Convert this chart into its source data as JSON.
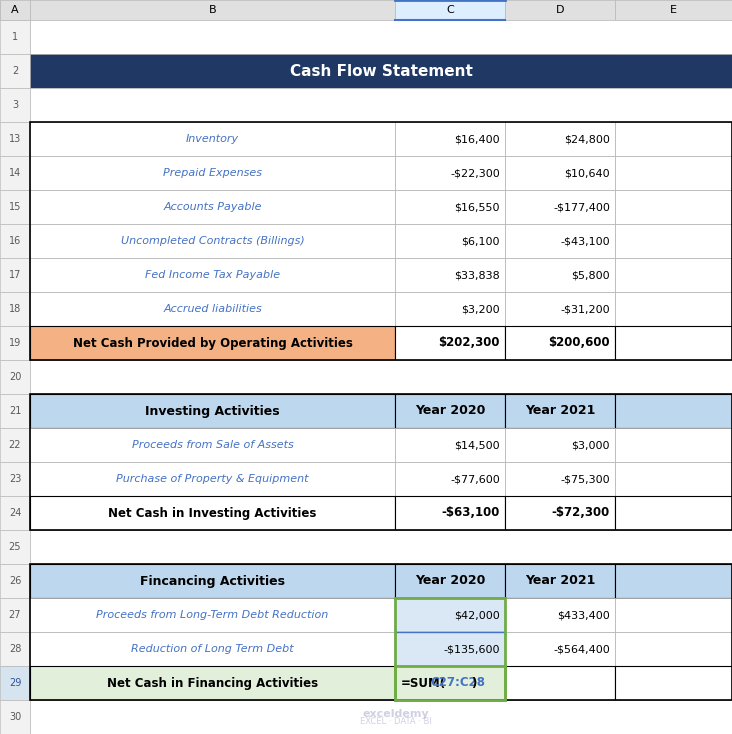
{
  "title": "Cash Flow Statement",
  "title_bg": "#1F3864",
  "title_fg": "#FFFFFF",
  "header_bg": "#BDD7EE",
  "net_bg_orange": "#F4B183",
  "net_bg_green": "#E2EFDA",
  "row_numbers": [
    1,
    2,
    3,
    13,
    14,
    15,
    16,
    17,
    18,
    19,
    20,
    21,
    22,
    23,
    24,
    25,
    26,
    27,
    28,
    29,
    30
  ],
  "sections_operating_rows": [
    {
      "label": "Inventory",
      "c": "$16,400",
      "d": "$24,800"
    },
    {
      "label": "Prepaid Expenses",
      "c": "-$22,300",
      "d": "$10,640"
    },
    {
      "label": "Accounts Payable",
      "c": "$16,550",
      "d": "-$177,400"
    },
    {
      "label": "Uncompleted Contracts (Billings)",
      "c": "$6,100",
      "d": "-$43,100"
    },
    {
      "label": "Fed Income Tax Payable",
      "c": "$33,838",
      "d": "$5,800"
    },
    {
      "label": "Accrued liabilities",
      "c": "$3,200",
      "d": "-$31,200"
    }
  ],
  "op_net_label": "Net Cash Provided by Operating Activities",
  "op_net_c": "$202,300",
  "op_net_d": "$200,600",
  "inv_header_label": "Investing Activities",
  "inv_year2020": "Year 2020",
  "inv_year2021": "Year 2021",
  "sections_investing_rows": [
    {
      "label": "Proceeds from Sale of Assets",
      "c": "$14,500",
      "d": "$3,000"
    },
    {
      "label": "Purchase of Property & Equipment",
      "c": "-$77,600",
      "d": "-$75,300"
    }
  ],
  "inv_net_label": "Net Cash in Investing Activities",
  "inv_net_c": "-$63,100",
  "inv_net_d": "-$72,300",
  "fin_header_label": "Fincancing Activities",
  "fin_year2020": "Year 2020",
  "fin_year2021": "Year 2021",
  "sections_financing_rows": [
    {
      "label": "Proceeds from Long-Term Debt Reduction",
      "c": "$42,000",
      "d": "$433,400"
    },
    {
      "label": "Reduction of Long Term Debt",
      "c": "-$135,600",
      "d": "-$564,400"
    }
  ],
  "fin_net_label": "Net Cash in Financing Activities",
  "fin_net_c_formula": "=SUM(",
  "fin_net_c_ref": "C27:C28",
  "fin_net_c_close": ")",
  "watermark_line1": "exceldemy",
  "watermark_line2": "EXCEL · DATA · BI",
  "grid_color": "#B0B0B0",
  "text_blue": "#4472C4",
  "selected_cell_border": "#70AD47",
  "font_size_title": 11,
  "font_size_header": 9,
  "font_size_body": 8
}
